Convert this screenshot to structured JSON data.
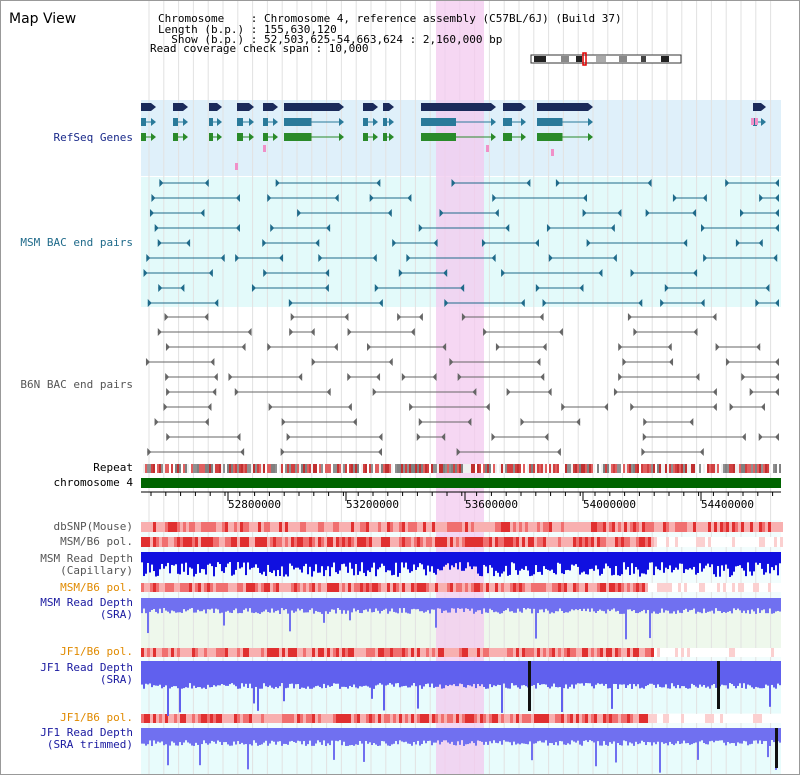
{
  "page": {
    "title": "Map View"
  },
  "header": {
    "chromosome_line": "Chromosome    : Chromosome 4, reference assembly (C57BL/6J) (Build 37)",
    "length_line": "Length (b.p.) : 155,630,120",
    "show_line": "  Show (b.p.) : 52,503,625-54,663,624 : 2,160,000 bp",
    "coverage_line": "Read coverage check span : 10,000"
  },
  "tracks": {
    "refseq": "RefSeq Genes",
    "msm_bac": "MSM BAC end pairs",
    "b6n_bac": "B6N BAC end pairs",
    "repeat": "Repeat",
    "chromosome": "chromosome 4",
    "dbsnp": "dbSNP(Mouse)",
    "msm_b6_pol": "MSM/B6 pol.",
    "msm_depth_cap_1": "MSM Read Depth",
    "msm_depth_cap_2": "(Capillary)",
    "msm_b6_pol_2": "MSM/B6 pol.",
    "msm_depth_sra_1": "MSM Read Depth",
    "msm_depth_sra_2": "(SRA)",
    "jf1_b6_pol": "JF1/B6 pol.",
    "jf1_depth_sra_1": "JF1 Read Depth",
    "jf1_depth_sra_2": "(SRA)",
    "jf1_b6_pol_2": "JF1/B6 pol.",
    "jf1_depth_trim_1": "JF1 Read Depth",
    "jf1_depth_trim_2": "(SRA trimmed)"
  },
  "axis": {
    "ticks": [
      "52800000",
      "53200000",
      "53600000",
      "54000000",
      "54400000"
    ]
  },
  "colors": {
    "refseq_bg": "#dff0fa",
    "bac_bg": "#e3fafa",
    "highlight": "#f5d6f2",
    "chromosome": "#006400",
    "depth_blue": "#1010e0",
    "depth_light": "#7070f0"
  }
}
